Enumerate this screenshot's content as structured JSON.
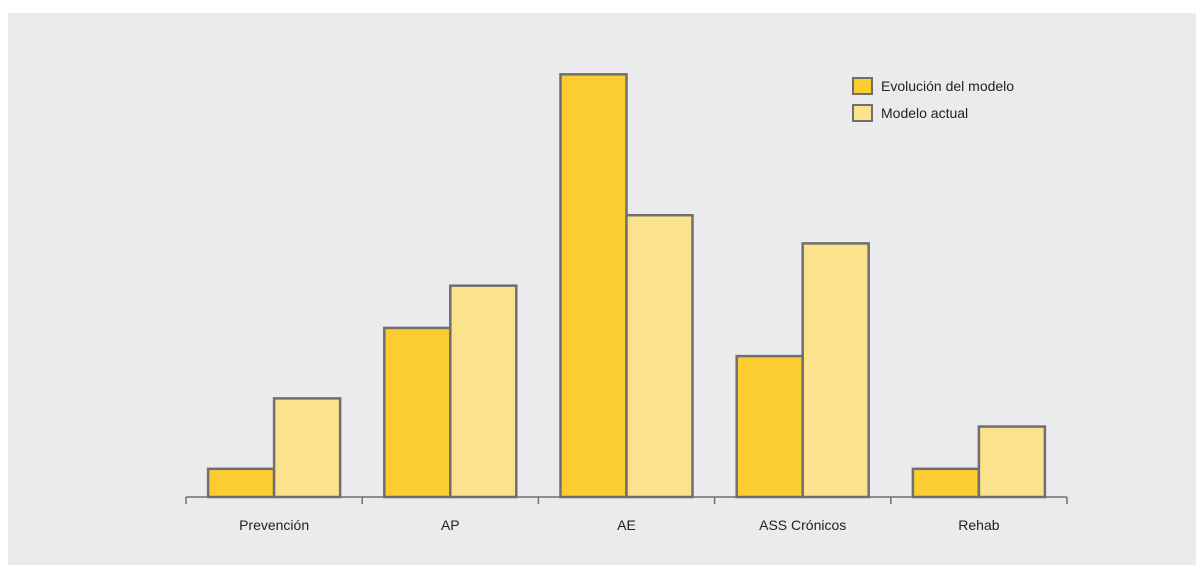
{
  "chart_data": {
    "type": "bar",
    "title": "",
    "xlabel": "",
    "ylabel": "",
    "categories": [
      "Prevención",
      "AP",
      "AE",
      "ASS Crónicos",
      "Rehab"
    ],
    "series": [
      {
        "name": "Evolución del modelo",
        "color": "#fccd33",
        "values": [
          2,
          12,
          30,
          10,
          2
        ]
      },
      {
        "name": "Modelo actual",
        "color": "#fbe28d",
        "values": [
          7,
          15,
          20,
          18,
          5
        ]
      }
    ],
    "ylim": [
      0,
      34
    ],
    "grid": false,
    "legend_position": "top-right",
    "bar_stroke_color": "#6f6f6f",
    "axis_color": "#6f6f6f"
  }
}
